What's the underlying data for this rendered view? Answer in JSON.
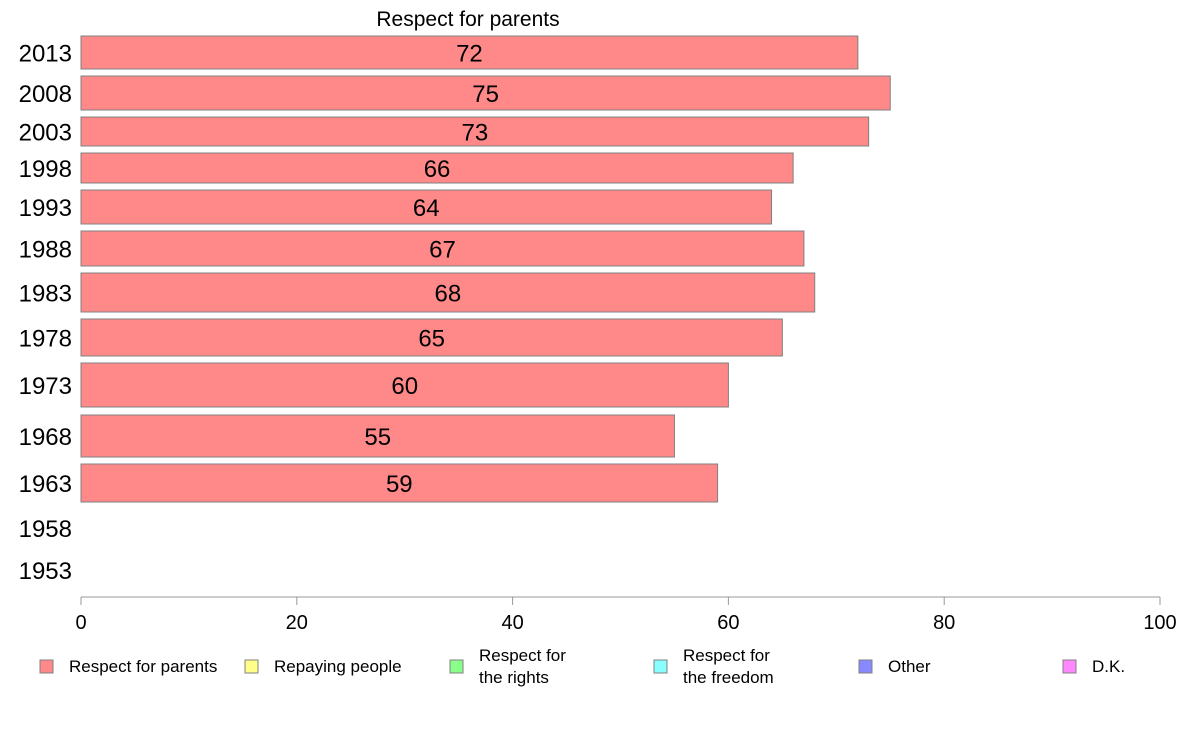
{
  "chart_data": {
    "type": "bar",
    "orientation": "horizontal",
    "title": "Respect for parents",
    "categories": [
      "2013",
      "2008",
      "2003",
      "1998",
      "1993",
      "1988",
      "1983",
      "1978",
      "1973",
      "1968",
      "1963",
      "1958",
      "1953"
    ],
    "series": [
      {
        "name": "Respect for parents",
        "color": "#ff8888",
        "values": [
          72,
          75,
          73,
          66,
          64,
          67,
          68,
          65,
          60,
          55,
          59,
          null,
          null
        ]
      },
      {
        "name": "Repaying people",
        "color": "#ffff88",
        "values": [
          null,
          null,
          null,
          null,
          null,
          null,
          null,
          null,
          null,
          null,
          null,
          null,
          null
        ]
      },
      {
        "name": "Respect for the rights",
        "color": "#88ff88",
        "values": [
          null,
          null,
          null,
          null,
          null,
          null,
          null,
          null,
          null,
          null,
          null,
          null,
          null
        ]
      },
      {
        "name": "Respect for the freedom",
        "color": "#88ffff",
        "values": [
          null,
          null,
          null,
          null,
          null,
          null,
          null,
          null,
          null,
          null,
          null,
          null,
          null
        ]
      },
      {
        "name": "Other",
        "color": "#8888ff",
        "values": [
          null,
          null,
          null,
          null,
          null,
          null,
          null,
          null,
          null,
          null,
          null,
          null,
          null
        ]
      },
      {
        "name": "D.K.",
        "color": "#ff88ff",
        "values": [
          null,
          null,
          null,
          null,
          null,
          null,
          null,
          null,
          null,
          null,
          null,
          null,
          null
        ]
      }
    ],
    "data_labels": [
      "72",
      "75",
      "73",
      "66",
      "64",
      "67",
      "68",
      "65",
      "60",
      "55",
      "59"
    ],
    "xlim": [
      0,
      100
    ],
    "xticks": [
      0,
      20,
      40,
      60,
      80,
      100
    ],
    "xtick_labels": [
      "0",
      "20",
      "40",
      "60",
      "80",
      "100"
    ],
    "grid": false,
    "legend_position": "bottom",
    "legend_labels": [
      [
        "Respect for parents"
      ],
      [
        "Repaying people"
      ],
      [
        "Respect for",
        "the rights"
      ],
      [
        "Respect for",
        "the freedom"
      ],
      [
        "Other"
      ],
      [
        "D.K."
      ]
    ],
    "bar_border_color": "#808080",
    "axis_color": "#999999"
  }
}
